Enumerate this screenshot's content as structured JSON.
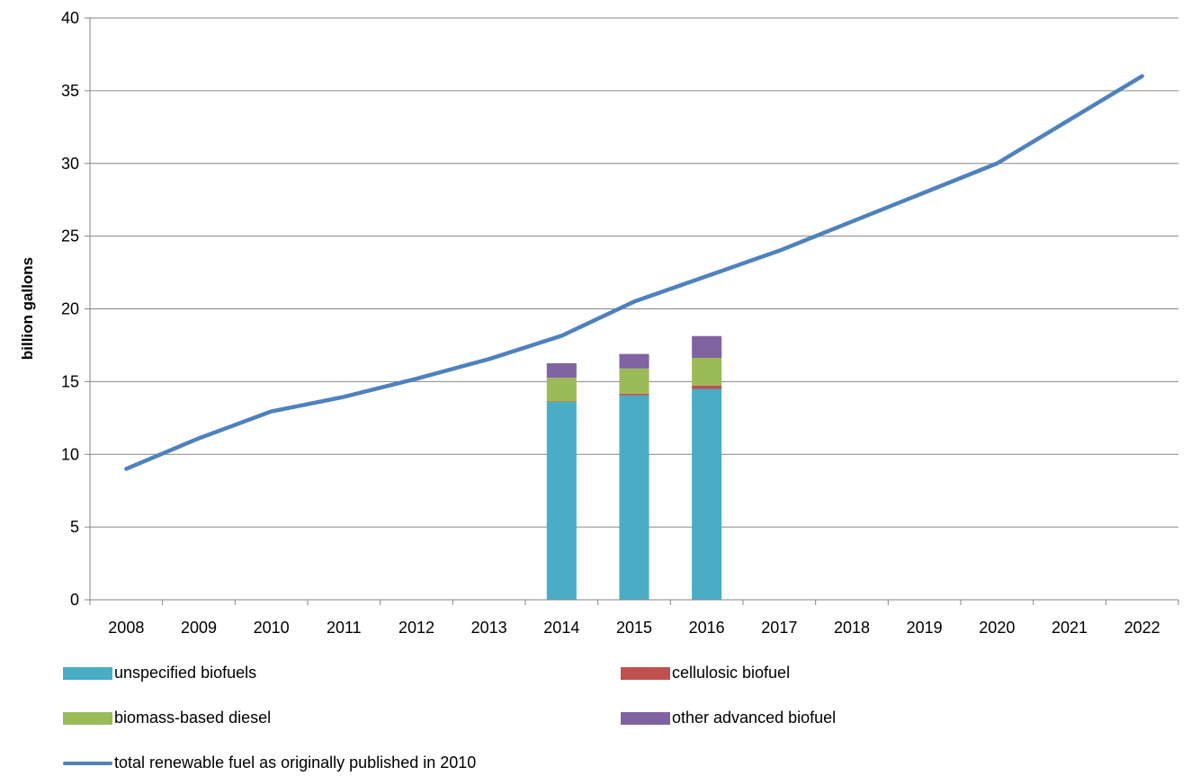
{
  "chart_data": {
    "type": "bar",
    "title": "",
    "xlabel": "",
    "ylabel": "billion gallons",
    "ylim": [
      0,
      40
    ],
    "yticks": [
      0,
      5,
      10,
      15,
      20,
      25,
      30,
      35,
      40
    ],
    "categories": [
      "2008",
      "2009",
      "2010",
      "2011",
      "2012",
      "2013",
      "2014",
      "2015",
      "2016",
      "2017",
      "2018",
      "2019",
      "2020",
      "2021",
      "2022"
    ],
    "grid": "horizontal",
    "legend": "bottom",
    "stacked": true,
    "series": [
      {
        "name": "unspecified biofuels",
        "kind": "bar",
        "color": "#4BACC6",
        "values": [
          null,
          null,
          null,
          null,
          null,
          null,
          13.6,
          14.05,
          14.5,
          null,
          null,
          null,
          null,
          null,
          null
        ]
      },
      {
        "name": "cellulosic biofuel",
        "kind": "bar",
        "color": "#C0504D",
        "values": [
          null,
          null,
          null,
          null,
          null,
          null,
          0.03,
          0.12,
          0.23,
          null,
          null,
          null,
          null,
          null,
          null
        ]
      },
      {
        "name": "biomass-based diesel",
        "kind": "bar",
        "color": "#9BBB59",
        "values": [
          null,
          null,
          null,
          null,
          null,
          null,
          1.63,
          1.73,
          1.9,
          null,
          null,
          null,
          null,
          null,
          null
        ]
      },
      {
        "name": "other advanced biofuel",
        "kind": "bar",
        "color": "#8064A2",
        "values": [
          null,
          null,
          null,
          null,
          null,
          null,
          1.0,
          1.0,
          1.5,
          null,
          null,
          null,
          null,
          null,
          null
        ]
      },
      {
        "name": "total renewable fuel as originally published in 2010",
        "kind": "line",
        "color": "#4F81BD",
        "values": [
          9.0,
          11.1,
          12.95,
          13.95,
          15.2,
          16.55,
          18.15,
          20.5,
          22.25,
          24.0,
          26.0,
          28.0,
          30.0,
          33.0,
          36.0
        ]
      }
    ]
  }
}
